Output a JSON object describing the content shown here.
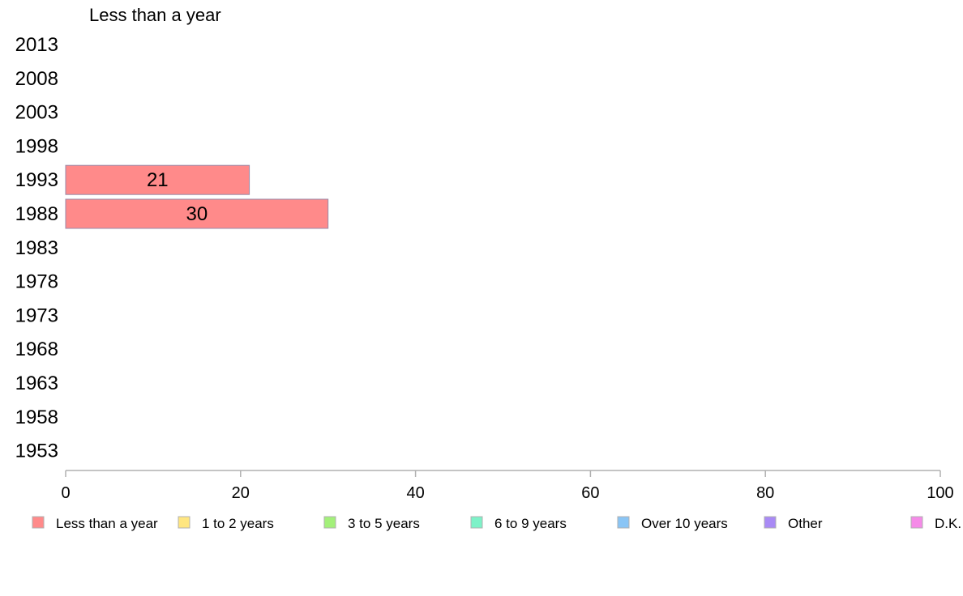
{
  "chart_data": {
    "type": "bar",
    "orientation": "horizontal",
    "stacked": true,
    "title": "Less than a year",
    "categories": [
      "2013",
      "2008",
      "2003",
      "1998",
      "1993",
      "1988",
      "1983",
      "1978",
      "1973",
      "1968",
      "1963",
      "1958",
      "1953"
    ],
    "series": [
      {
        "name": "Less than a year",
        "color": "#ff8a8a",
        "values": [
          null,
          null,
          null,
          null,
          21,
          30,
          null,
          null,
          null,
          null,
          null,
          null,
          null
        ]
      },
      {
        "name": "1 to 2 years",
        "color": "#ffe680",
        "values": [
          null,
          null,
          null,
          null,
          null,
          null,
          null,
          null,
          null,
          null,
          null,
          null,
          null
        ]
      },
      {
        "name": "3 to 5 years",
        "color": "#a3f07a",
        "values": [
          null,
          null,
          null,
          null,
          null,
          null,
          null,
          null,
          null,
          null,
          null,
          null,
          null
        ]
      },
      {
        "name": "6 to 9 years",
        "color": "#7df2c8",
        "values": [
          null,
          null,
          null,
          null,
          null,
          null,
          null,
          null,
          null,
          null,
          null,
          null,
          null
        ]
      },
      {
        "name": "Over 10 years",
        "color": "#8ac5f5",
        "values": [
          null,
          null,
          null,
          null,
          null,
          null,
          null,
          null,
          null,
          null,
          null,
          null,
          null
        ]
      },
      {
        "name": "Other",
        "color": "#a98af5",
        "values": [
          null,
          null,
          null,
          null,
          null,
          null,
          null,
          null,
          null,
          null,
          null,
          null,
          null
        ]
      },
      {
        "name": "D.K.",
        "color": "#f58ae8",
        "values": [
          null,
          null,
          null,
          null,
          null,
          null,
          null,
          null,
          null,
          null,
          null,
          null,
          null
        ]
      }
    ],
    "data_labels": [
      "",
      "",
      "",
      "",
      "21",
      "30",
      "",
      "",
      "",
      "",
      "",
      "",
      ""
    ],
    "xlim": [
      0,
      100
    ],
    "xticks": [
      "0",
      "20",
      "40",
      "60",
      "80",
      "100"
    ],
    "grid": false,
    "legend_position": "bottom"
  }
}
